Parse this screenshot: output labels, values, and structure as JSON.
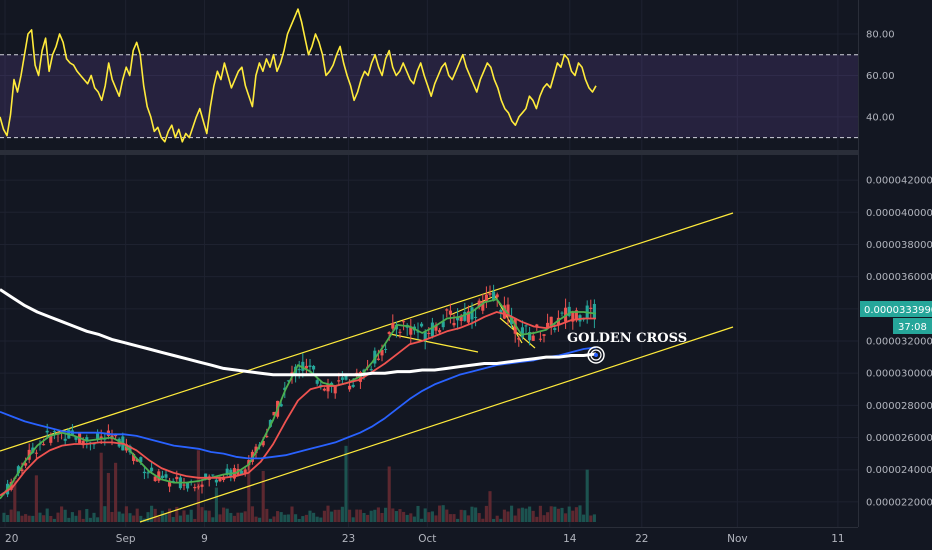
{
  "chart_data": [
    {
      "type": "line",
      "series": [
        {
          "values": [
            40,
            34,
            31,
            41,
            58,
            52,
            60,
            70,
            80,
            82,
            65,
            60,
            72,
            78,
            62,
            70,
            74,
            80,
            76,
            68,
            66,
            65,
            62,
            60,
            58,
            56,
            60,
            54,
            52,
            48,
            55,
            66,
            58,
            54,
            50,
            58,
            64,
            60,
            72,
            76,
            70,
            55,
            45,
            40,
            33,
            35,
            30,
            28,
            33,
            36,
            30,
            34,
            28,
            32,
            30,
            35,
            40,
            44,
            38,
            32,
            45,
            55,
            62,
            58,
            66,
            60,
            54,
            58,
            62,
            64,
            55,
            50,
            45,
            60,
            66,
            62,
            68,
            64,
            70,
            62,
            66,
            72,
            80,
            84,
            88,
            92,
            86,
            78,
            70,
            74,
            80,
            76,
            70,
            60,
            62,
            65,
            70,
            74,
            66,
            60,
            55,
            48,
            52,
            58,
            62,
            60,
            66,
            70,
            64,
            60,
            68,
            72,
            64,
            60,
            62,
            66,
            62,
            58,
            56,
            62,
            66,
            60,
            55,
            50,
            56,
            60,
            64,
            66,
            60,
            58,
            62,
            66,
            70,
            64,
            60,
            56,
            52,
            58,
            62,
            66,
            64,
            58,
            54,
            48,
            44,
            42,
            38,
            36,
            40,
            42,
            44,
            50,
            48,
            44,
            50,
            54,
            56,
            54,
            60,
            66,
            64,
            70,
            68,
            62,
            60,
            66,
            64,
            58,
            54,
            52,
            55
          ]
        }
      ],
      "ylim": [
        25,
        94
      ],
      "yticks": [
        40,
        60,
        80
      ],
      "ytick_labels": [
        "40.00",
        "60.00",
        "80.00"
      ],
      "band": [
        30,
        70
      ]
    },
    {
      "type": "line",
      "xticks": [
        {
          "index": 3,
          "label": "20"
        },
        {
          "index": 75,
          "label": "Sep"
        },
        {
          "index": 122,
          "label": "9"
        },
        {
          "index": 208,
          "label": "23"
        },
        {
          "index": 255,
          "label": "Oct"
        },
        {
          "index": 340,
          "label": "14"
        },
        {
          "index": 383,
          "label": "22"
        },
        {
          "index": 440,
          "label": "Nov"
        },
        {
          "index": 500,
          "label": "11"
        }
      ],
      "series": [
        {
          "color": "#4caf50",
          "values": [
            2.22e-05,
            2.32e-05,
            2.45e-05,
            2.55e-05,
            2.61e-05,
            2.63e-05,
            2.61e-05,
            2.58e-05,
            2.59e-05,
            2.6e-05,
            2.56e-05,
            2.47e-05,
            2.39e-05,
            2.34e-05,
            2.32e-05,
            2.32e-05,
            2.33e-05,
            2.35e-05,
            2.37e-05,
            2.38e-05,
            2.43e-05,
            2.56e-05,
            2.71e-05,
            2.9e-05,
            3.05e-05,
            3.01e-05,
            2.94e-05,
            2.92e-05,
            2.94e-05,
            2.98e-05,
            3.07e-05,
            3.18e-05,
            3.3e-05,
            3.29e-05,
            3.25e-05,
            3.29e-05,
            3.34e-05,
            3.35e-05,
            3.38e-05,
            3.44e-05,
            3.46e-05,
            3.36e-05,
            3.24e-05,
            3.25e-05,
            3.27e-05,
            3.33e-05,
            3.38e-05,
            3.38e-05,
            3.37e-05
          ]
        },
        {
          "color": "#ef5350",
          "values": [
            2.24e-05,
            2.29e-05,
            2.39e-05,
            2.47e-05,
            2.52e-05,
            2.55e-05,
            2.56e-05,
            2.56e-05,
            2.57e-05,
            2.57e-05,
            2.56e-05,
            2.52e-05,
            2.46e-05,
            2.41e-05,
            2.38e-05,
            2.36e-05,
            2.35e-05,
            2.35e-05,
            2.35e-05,
            2.36e-05,
            2.38e-05,
            2.45e-05,
            2.56e-05,
            2.7e-05,
            2.83e-05,
            2.9e-05,
            2.92e-05,
            2.92e-05,
            2.94e-05,
            2.96e-05,
            3.01e-05,
            3.06e-05,
            3.12e-05,
            3.18e-05,
            3.2e-05,
            3.23e-05,
            3.26e-05,
            3.28e-05,
            3.31e-05,
            3.35e-05,
            3.38e-05,
            3.36e-05,
            3.32e-05,
            3.29e-05,
            3.28e-05,
            3.3e-05,
            3.33e-05,
            3.34e-05,
            3.34e-05
          ]
        },
        {
          "color": "#2962ff",
          "values": [
            2.76e-05,
            2.73e-05,
            2.7e-05,
            2.68e-05,
            2.66e-05,
            2.64e-05,
            2.63e-05,
            2.63e-05,
            2.63e-05,
            2.62e-05,
            2.62e-05,
            2.61e-05,
            2.59e-05,
            2.57e-05,
            2.55e-05,
            2.54e-05,
            2.53e-05,
            2.51e-05,
            2.5e-05,
            2.48e-05,
            2.47e-05,
            2.47e-05,
            2.48e-05,
            2.49e-05,
            2.51e-05,
            2.53e-05,
            2.55e-05,
            2.57e-05,
            2.6e-05,
            2.63e-05,
            2.67e-05,
            2.72e-05,
            2.78e-05,
            2.84e-05,
            2.89e-05,
            2.93e-05,
            2.96e-05,
            2.99e-05,
            3.01e-05,
            3.03e-05,
            3.05e-05,
            3.06e-05,
            3.07e-05,
            3.08e-05,
            3.1e-05,
            3.11e-05,
            3.13e-05,
            3.15e-05,
            3.16e-05
          ]
        },
        {
          "color": "#ffffff",
          "values": [
            3.52e-05,
            3.47e-05,
            3.42e-05,
            3.38e-05,
            3.35e-05,
            3.32e-05,
            3.29e-05,
            3.26e-05,
            3.24e-05,
            3.21e-05,
            3.19e-05,
            3.17e-05,
            3.15e-05,
            3.13e-05,
            3.11e-05,
            3.09e-05,
            3.07e-05,
            3.05e-05,
            3.03e-05,
            3.02e-05,
            3.01e-05,
            3e-05,
            2.99e-05,
            2.99e-05,
            2.99e-05,
            2.99e-05,
            2.99e-05,
            2.99e-05,
            2.99e-05,
            2.99e-05,
            3e-05,
            3e-05,
            3.01e-05,
            3.01e-05,
            3.02e-05,
            3.02e-05,
            3.03e-05,
            3.04e-05,
            3.05e-05,
            3.06e-05,
            3.06e-05,
            3.07e-05,
            3.08e-05,
            3.09e-05,
            3.1e-05,
            3.1e-05,
            3.11e-05,
            3.11e-05,
            3.12e-05
          ]
        }
      ],
      "ylim": [
        2.075e-05,
        4.325e-05
      ],
      "yticks": [
        2.2e-05,
        2.4e-05,
        2.6e-05,
        2.8e-05,
        3e-05,
        3.2e-05,
        3.4e-05,
        3.6e-05,
        3.8e-05,
        4e-05,
        4.2e-05
      ],
      "ytick_labels": [
        "0.0000220000",
        "0.0000240000",
        "0.0000260000",
        "0.0000280000",
        "0.0000300000",
        "0.0000320000",
        "0.0000340000",
        "0.0000360000",
        "0.0000380000",
        "0.0000400000",
        "0.0000420000"
      ],
      "annotations": [
        {
          "text": "GOLDEN CROSS",
          "color": "#ffffff"
        }
      ],
      "last_price": "0.0000333990",
      "countdown": "37:08"
    }
  ]
}
